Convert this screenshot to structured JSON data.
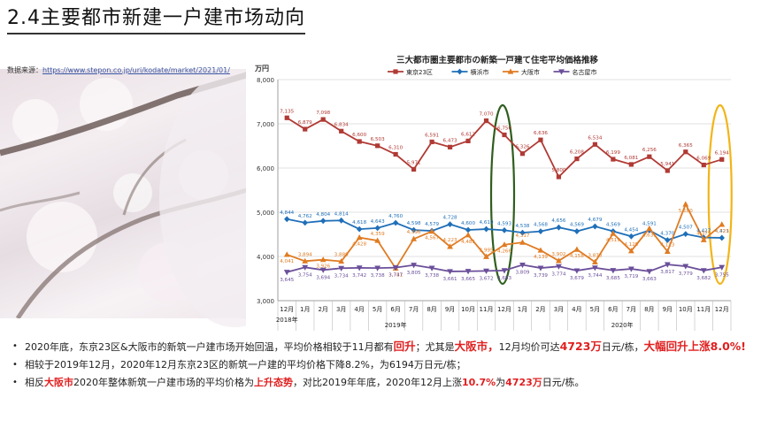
{
  "page": {
    "title": "2.4主要都市新建一户建市场动向",
    "source_label": "数据来源：",
    "source_url": "https://www.stepon.co.jp/uri/kodate/market/2021/01/"
  },
  "bullets": [
    {
      "parts": [
        {
          "t": "2020年底，东京23区&大阪市的新筑一户建市场开始回温，平均价格相较于11月都有",
          "s": ""
        },
        {
          "t": "回升",
          "s": "red big"
        },
        {
          "t": "；尤其是",
          "s": ""
        },
        {
          "t": "大阪市，",
          "s": "red big"
        },
        {
          "t": "12月均价可达",
          "s": ""
        },
        {
          "t": "4723万",
          "s": "red big"
        },
        {
          "t": "日元/栋，",
          "s": ""
        },
        {
          "t": "大幅回升上涨8.0%!",
          "s": "red big"
        }
      ]
    },
    {
      "parts": [
        {
          "t": "相较于2019年12月，2020年12月东京23区的新筑一户建的平均价格下降8.2%，为6194万日元/栋；",
          "s": ""
        }
      ]
    },
    {
      "parts": [
        {
          "t": "相反",
          "s": ""
        },
        {
          "t": "大阪市",
          "s": "red"
        },
        {
          "t": "2020年整体新筑一户建市场的平均价格为",
          "s": ""
        },
        {
          "t": "上升态势",
          "s": "red"
        },
        {
          "t": "，对比2019年年底，2020年12月上涨",
          "s": ""
        },
        {
          "t": "10.7%",
          "s": "red"
        },
        {
          "t": "为",
          "s": ""
        },
        {
          "t": "4723万",
          "s": "red"
        },
        {
          "t": "日元/栋。",
          "s": ""
        }
      ]
    }
  ],
  "chart_data": {
    "type": "line",
    "title": "三大都市圏主要都市の新築一戸建て住宅平均価格推移",
    "ylabel": "万円",
    "ylim": [
      3000,
      8000
    ],
    "yticks": [
      "3,000",
      "4,000",
      "5,000",
      "6,000",
      "7,000",
      "8,000"
    ],
    "categories": [
      "12月",
      "1月",
      "2月",
      "3月",
      "4月",
      "5月",
      "6月",
      "7月",
      "8月",
      "9月",
      "10月",
      "11月",
      "12月",
      "1月",
      "2月",
      "3月",
      "4月",
      "5月",
      "6月",
      "7月",
      "8月",
      "9月",
      "10月",
      "11月",
      "12月"
    ],
    "year_labels": {
      "first": "2018年",
      "y2019": "2019年",
      "y2020": "2020年"
    },
    "grid": true,
    "legend_position": "top",
    "series": [
      {
        "name": "東京23区",
        "color": "#b03a34",
        "marker": "square",
        "values": [
          7135,
          6879,
          7098,
          6834,
          6600,
          6503,
          6310,
          5971,
          6591,
          6473,
          6612,
          7070,
          6750,
          6326,
          6636,
          5800,
          6208,
          6534,
          6199,
          6081,
          6256,
          5941,
          6365,
          6069,
          6194
        ],
        "labels": [
          "7,135",
          "6,879",
          "7,098",
          "6,834",
          "6,600",
          "6,503",
          "6,310",
          "5,971",
          "6,591",
          "6,473",
          "6,612",
          "7,070",
          "6,750",
          "6,326",
          "6,636",
          "5,800",
          "6,208",
          "6,534",
          "6,199",
          "6,081",
          "6,256",
          "5,941",
          "6,365",
          "6,069",
          "6,194"
        ]
      },
      {
        "name": "横浜市",
        "color": "#1f6fb8",
        "marker": "diamond",
        "values": [
          4844,
          4762,
          4804,
          4814,
          4618,
          4643,
          4760,
          4598,
          4579,
          4728,
          4600,
          4619,
          4593,
          4538,
          4568,
          4656,
          4569,
          4679,
          4569,
          4454,
          4591,
          4370,
          4507,
          4427,
          4421
        ],
        "labels": [
          "4,844",
          "4,762",
          "4,804",
          "4,814",
          "4,618",
          "4,643",
          "4,760",
          "4,598",
          "4,579",
          "4,728",
          "4,600",
          "4,619",
          "4,593",
          "4,538",
          "4,568",
          "4,656",
          "4,569",
          "4,679",
          "4,569",
          "4,454",
          "4,591",
          "4,370",
          "4,507",
          "4,427",
          "4,421"
        ]
      },
      {
        "name": "大阪市",
        "color": "#e07b22",
        "marker": "tri-up",
        "values": [
          4041,
          3894,
          3926,
          3889,
          4428,
          4359,
          3731,
          4396,
          4567,
          4223,
          4485,
          3995,
          4266,
          4317,
          4139,
          3902,
          4158,
          3873,
          4519,
          4125,
          4631,
          4113,
          5180,
          4375,
          4723
        ],
        "labels": [
          "4,041",
          "3,894",
          "3,926",
          "3,889",
          "4,428",
          "4,359",
          "3,731",
          "4,396",
          "4,567",
          "4,223",
          "4,485",
          "3,995",
          "4,266",
          "4,317",
          "4,139",
          "3,902",
          "4,158",
          "3,873",
          "4,519",
          "4,125",
          "4,631",
          "4,113",
          "5,180",
          "4,375",
          "4,723"
        ]
      },
      {
        "name": "名古屋市",
        "color": "#6b4f9a",
        "marker": "tri-down",
        "values": [
          3645,
          3754,
          3694,
          3734,
          3742,
          3738,
          3747,
          3805,
          3738,
          3661,
          3665,
          3672,
          3683,
          3809,
          3739,
          3774,
          3679,
          3744,
          3685,
          3719,
          3663,
          3817,
          3779,
          3682,
          3755
        ],
        "labels": [
          "3,645",
          "3,754",
          "3,694",
          "3,734",
          "3,742",
          "3,738",
          "3,747",
          "3,805",
          "3,738",
          "3,661",
          "3,665",
          "3,672",
          "3,683",
          "3,809",
          "3,739",
          "3,774",
          "3,679",
          "3,744",
          "3,685",
          "3,719",
          "3,663",
          "3,817",
          "3,779",
          "3,682",
          "3,755"
        ]
      }
    ],
    "highlights": [
      {
        "category_index": 12,
        "color": "#2f5e1e"
      },
      {
        "category_index": 24,
        "color": "#f2b517"
      }
    ]
  }
}
